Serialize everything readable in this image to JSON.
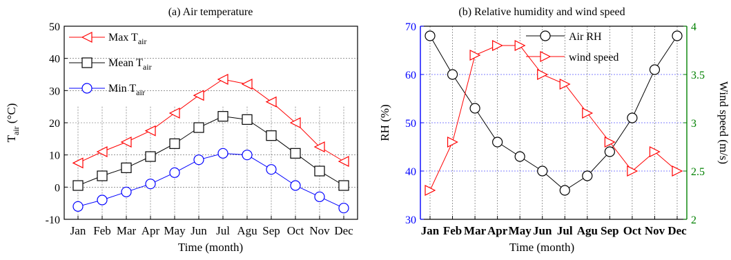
{
  "chart_data": [
    {
      "type": "line",
      "title": "(a) Air temperature",
      "xlabel": "Time (month)",
      "ylabel": {
        "main": "T",
        "sub": "air",
        "unit": " (°C)"
      },
      "ylim": [
        -10,
        50
      ],
      "yticks": [
        -10,
        0,
        10,
        20,
        30,
        40,
        50
      ],
      "grid": true,
      "legend_position": "top-left",
      "categories": [
        "Jan",
        "Feb",
        "Mar",
        "Apr",
        "May",
        "Jun",
        "Jul",
        "Agu",
        "Sep",
        "Oct",
        "Nov",
        "Dec"
      ],
      "series": [
        {
          "name": "Max T",
          "name_sub": "air",
          "color": "#ff0000",
          "marker": "triangle-left",
          "values": [
            7.5,
            11,
            14,
            17.5,
            23,
            28.5,
            33.5,
            32,
            26.5,
            20,
            12.5,
            8
          ]
        },
        {
          "name": "Mean T",
          "name_sub": "air",
          "color": "#000000",
          "marker": "square",
          "values": [
            0.5,
            3.5,
            6,
            9.5,
            13.5,
            18.5,
            22,
            21,
            16,
            10.5,
            5,
            0.5
          ]
        },
        {
          "name": "Min T",
          "name_sub": "air",
          "color": "#0000ff",
          "marker": "circle",
          "values": [
            -6,
            -4,
            -1.5,
            1,
            4.5,
            8.5,
            10.5,
            10,
            5.5,
            0.5,
            -3,
            -6.5
          ]
        }
      ]
    },
    {
      "type": "line",
      "title": "(b) Relative humidity and wind speed",
      "xlabel": "Time (month)",
      "ylabel": "RH (%)",
      "ylabel_right": "Wind speed (m/s)",
      "ylim": [
        30,
        70
      ],
      "yticks": [
        30,
        40,
        50,
        60,
        70
      ],
      "ylim_right": [
        2,
        4
      ],
      "yticks_right": [
        "2",
        "2.5",
        "3",
        "3.5",
        "4"
      ],
      "left_axis_color": "#0000ff",
      "right_axis_color": "#008000",
      "grid": true,
      "legend_position": "top-center",
      "categories": [
        "Jan",
        "Feb",
        "Mar",
        "Apr",
        "May",
        "Jun",
        "Jul",
        "Agu",
        "Sep",
        "Oct",
        "Nov",
        "Dec"
      ],
      "series": [
        {
          "name": "Air RH",
          "axis": "left",
          "color": "#000000",
          "marker": "circle",
          "values": [
            68,
            60,
            53,
            46,
            43,
            40,
            36,
            39,
            44,
            51,
            61,
            68
          ]
        },
        {
          "name": "wind speed",
          "axis": "right",
          "color": "#ff0000",
          "marker": "triangle-right",
          "values": [
            2.3,
            2.8,
            3.7,
            3.8,
            3.8,
            3.5,
            3.4,
            3.1,
            2.8,
            2.5,
            2.7,
            2.5
          ]
        }
      ]
    }
  ]
}
